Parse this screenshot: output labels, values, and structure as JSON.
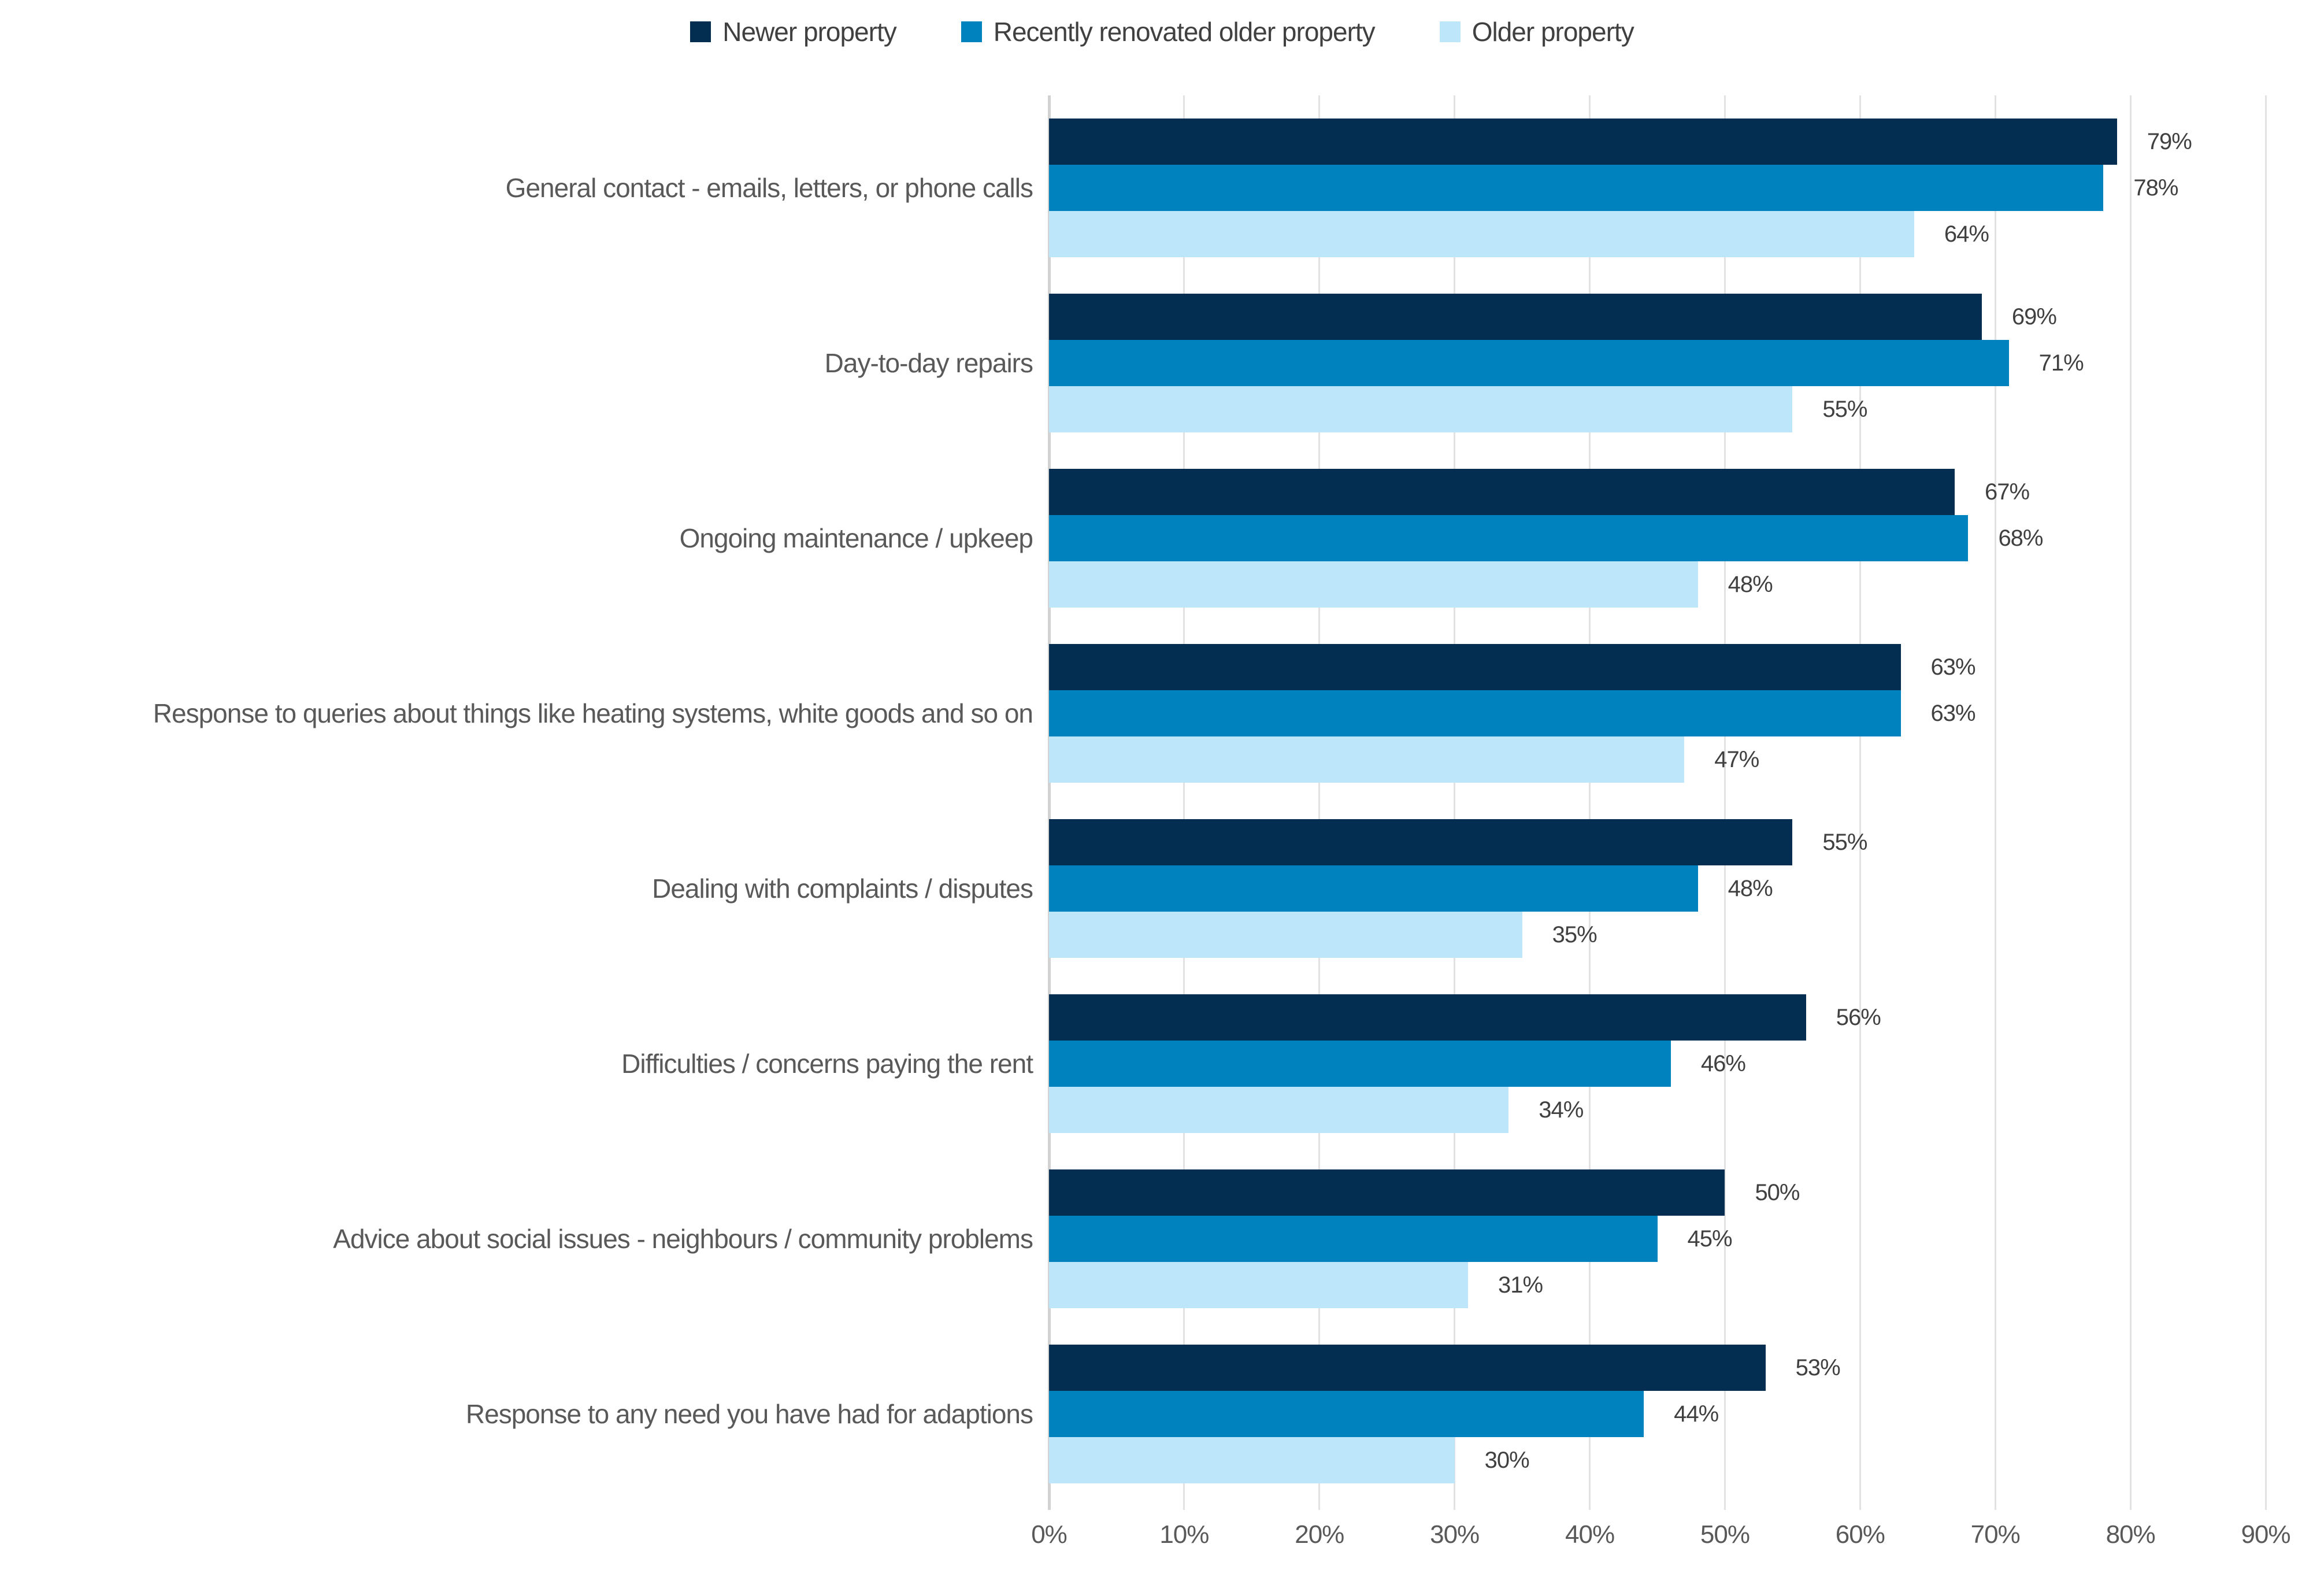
{
  "chart_data": {
    "type": "bar",
    "orientation": "horizontal",
    "title": "",
    "xlabel": "",
    "ylabel": "",
    "value_suffix": "%",
    "xlim": [
      0,
      90
    ],
    "x_ticks": [
      "0%",
      "10%",
      "20%",
      "30%",
      "40%",
      "50%",
      "60%",
      "70%",
      "80%",
      "90%"
    ],
    "grid": true,
    "legend_position": "top-center",
    "data_labels": "outside-end",
    "categories": [
      "General contact - emails, letters, or phone calls",
      "Day-to-day repairs",
      "Ongoing maintenance / upkeep",
      "Response to queries about things like heating systems, white goods and so on",
      "Dealing with complaints / disputes",
      "Difficulties / concerns paying the rent",
      "Advice about social issues - neighbours / community problems",
      "Response to any need you have had for adaptions"
    ],
    "series": [
      {
        "name": "Newer property",
        "color": "#032E52",
        "values": [
          79,
          69,
          67,
          63,
          55,
          56,
          50,
          53
        ]
      },
      {
        "name": "Recently renovated older property",
        "color": "#0082BE",
        "values": [
          78,
          71,
          68,
          63,
          48,
          46,
          45,
          44
        ]
      },
      {
        "name": "Older property",
        "color": "#BDE6FA",
        "values": [
          64,
          55,
          48,
          47,
          35,
          34,
          31,
          30
        ]
      }
    ]
  },
  "colors": {
    "background": "#FFFFFF",
    "gridline": "#E2E2E2",
    "axis_line": "#D2D2D2",
    "category_text": "#595959",
    "tick_text": "#595959",
    "value_text": "#404040",
    "legend_text": "#404040"
  }
}
